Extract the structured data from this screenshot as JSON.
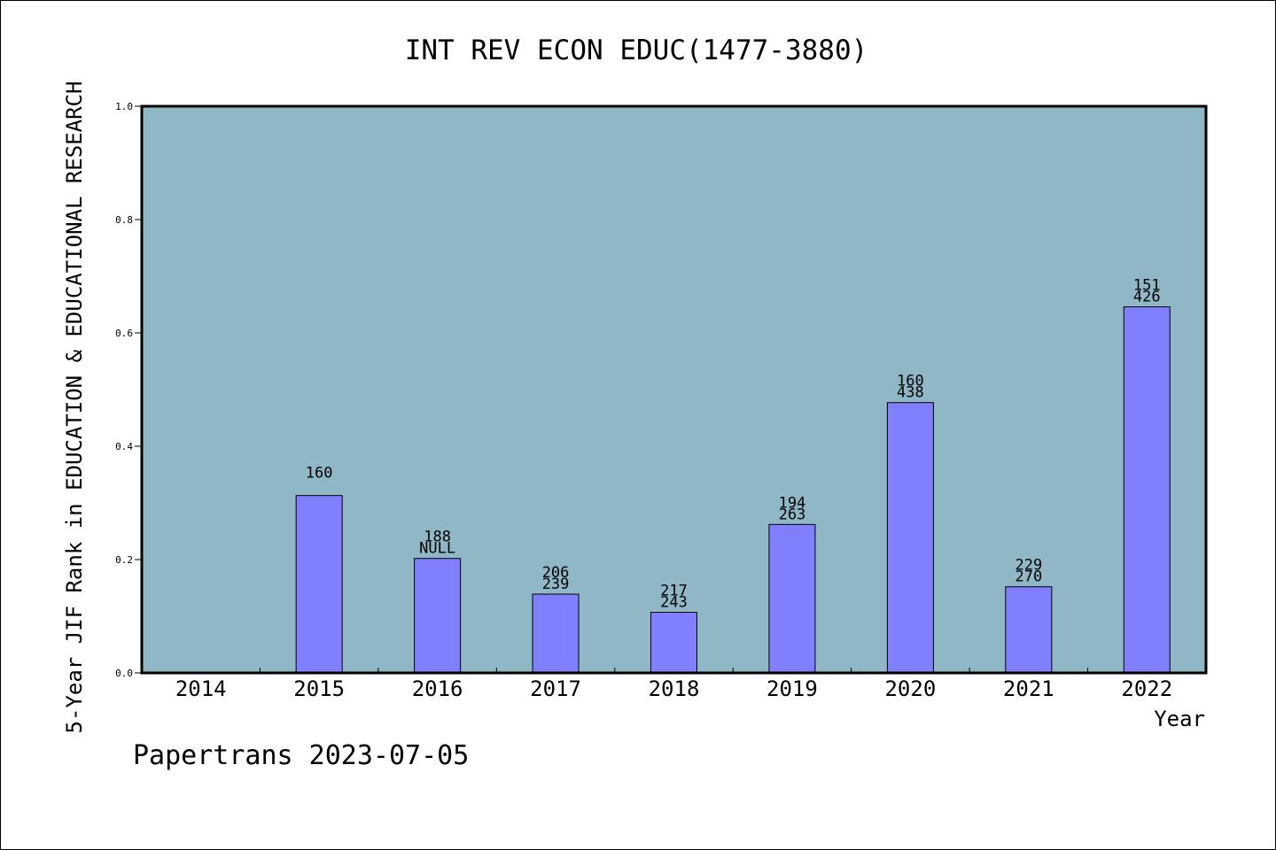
{
  "chart_data": {
    "type": "bar",
    "title": "INT REV ECON EDUC(1477-3880)",
    "xlabel": "Year",
    "ylabel": "5-Year JIF Rank in EDUCATION & EDUCATIONAL RESEARCH",
    "ylim": [
      0,
      1.0
    ],
    "yticks": [
      "0.0",
      "0.2",
      "0.4",
      "0.6",
      "0.8",
      "1.0"
    ],
    "categories": [
      "2014",
      "2015",
      "2016",
      "2017",
      "2018",
      "2019",
      "2020",
      "2021",
      "2022"
    ],
    "values": [
      null,
      0.313,
      0.202,
      0.139,
      0.107,
      0.262,
      0.477,
      0.152,
      0.646
    ],
    "labels": [
      [],
      [
        "160"
      ],
      [
        "188",
        "NULL"
      ],
      [
        "206",
        "239"
      ],
      [
        "217",
        "243"
      ],
      [
        "194",
        "263"
      ],
      [
        "160",
        "438"
      ],
      [
        "229",
        "270"
      ],
      [
        "151",
        "426"
      ]
    ],
    "plot_bg": "#8fb7c5",
    "bar_color": "#8080ff",
    "grid": false
  },
  "footer": "Papertrans 2023-07-05"
}
